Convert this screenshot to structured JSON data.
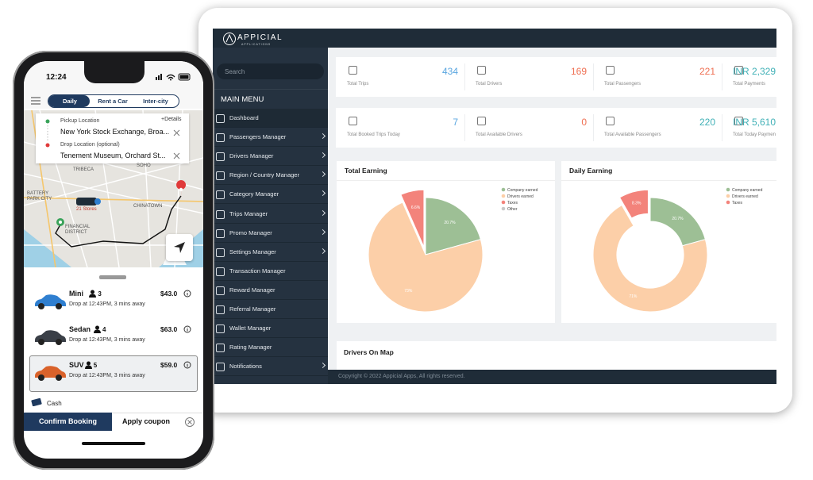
{
  "phone": {
    "time": "12:24",
    "tabs": [
      "Daily",
      "Rent a Car",
      "Inter-city"
    ],
    "pickup_label": "Pickup Location",
    "details": "+Details",
    "pickup": "New York Stock Exchange, Broa...",
    "drop_label": "Drop Location (optional)",
    "drop": "Tenement Museum, Orchard St...",
    "map_labels": [
      "TRIBECA",
      "SOHO",
      "CHINATOWN",
      "BATTERY PARK CITY",
      "FINANCIAL DISTRICT",
      "21 Stores"
    ],
    "cars": [
      {
        "name": "Mini",
        "seats": "3",
        "price": "$43.0",
        "eta": "Drop at 12:43PM, 3 mins away",
        "color": "#2f7fd0",
        "selected": false
      },
      {
        "name": "Sedan",
        "seats": "4",
        "price": "$63.0",
        "eta": "Drop at 12:43PM, 3 mins away",
        "color": "#3a3f47",
        "selected": false
      },
      {
        "name": "SUV",
        "seats": "5",
        "price": "$59.0",
        "eta": "Drop at 12:43PM, 3 mins away",
        "color": "#d9622b",
        "selected": true
      }
    ],
    "payment": "Cash",
    "confirm": "Confirm Booking",
    "coupon": "Apply coupon"
  },
  "dashboard": {
    "brand": "APPICIAL",
    "brand_sub": "APPLICATIONS",
    "search": "Search",
    "menu_title": "MAIN MENU",
    "menu": [
      {
        "label": "Dashboard",
        "submenu": false
      },
      {
        "label": "Passengers Manager",
        "submenu": true
      },
      {
        "label": "Drivers Manager",
        "submenu": true
      },
      {
        "label": "Region / Country Manager",
        "submenu": true
      },
      {
        "label": "Category Manager",
        "submenu": true
      },
      {
        "label": "Trips Manager",
        "submenu": true
      },
      {
        "label": "Promo Manager",
        "submenu": true
      },
      {
        "label": "Settings Manager",
        "submenu": true
      },
      {
        "label": "Transaction Manager",
        "submenu": false
      },
      {
        "label": "Reward Manager",
        "submenu": false
      },
      {
        "label": "Referral Manager",
        "submenu": false
      },
      {
        "label": "Wallet Manager",
        "submenu": false
      },
      {
        "label": "Rating Manager",
        "submenu": false
      },
      {
        "label": "Notifications",
        "submenu": true
      }
    ],
    "stats": [
      [
        {
          "label": "Total Trips",
          "value": 434,
          "color": "#5aa6e0"
        },
        {
          "label": "Total Drivers",
          "value": 169,
          "color": "#ef6f52"
        },
        {
          "label": "Total Passengers",
          "value": 221,
          "color": "#ef6f52"
        },
        {
          "label": "Total Payments",
          "value": "INR 2,329,",
          "color": "#3fb0b6"
        }
      ],
      [
        {
          "label": "Total Booked Trips Today",
          "value": 7,
          "color": "#5aa6e0"
        },
        {
          "label": "Total Available Drivers",
          "value": 0,
          "color": "#ef6f52"
        },
        {
          "label": "Total Available Passengers",
          "value": 220,
          "color": "#3fb0b6"
        },
        {
          "label": "Total Today Paymen",
          "value": "INR 5,610",
          "color": "#3fb0b6"
        }
      ]
    ],
    "charts": [
      {
        "type": "pie",
        "title": "Total Earning",
        "donut": false,
        "categories": [
          "Company earned",
          "Drivers earned",
          "Taxes",
          "Other"
        ],
        "values": [
          20.7,
          72.7,
          6.6,
          0
        ],
        "value_labels": [
          "20.7%",
          "73%",
          "6.6%",
          null
        ],
        "colors": [
          "#9dbf95",
          "#fccfa8",
          "#f3837b",
          "#c9c9c9"
        ]
      },
      {
        "type": "pie",
        "title": "Daily Earning",
        "donut": true,
        "categories": [
          "Company earned",
          "Drivers earned",
          "Taxes"
        ],
        "values": [
          20.7,
          71,
          8.3
        ],
        "value_labels": [
          "20.7%",
          "71%",
          "8.3%"
        ],
        "colors": [
          "#9dbf95",
          "#fccfa8",
          "#f3837b"
        ]
      }
    ],
    "map_title": "Drivers On Map",
    "footer": "Copyright © 2022 Appicial Apps, All rights reserved."
  }
}
